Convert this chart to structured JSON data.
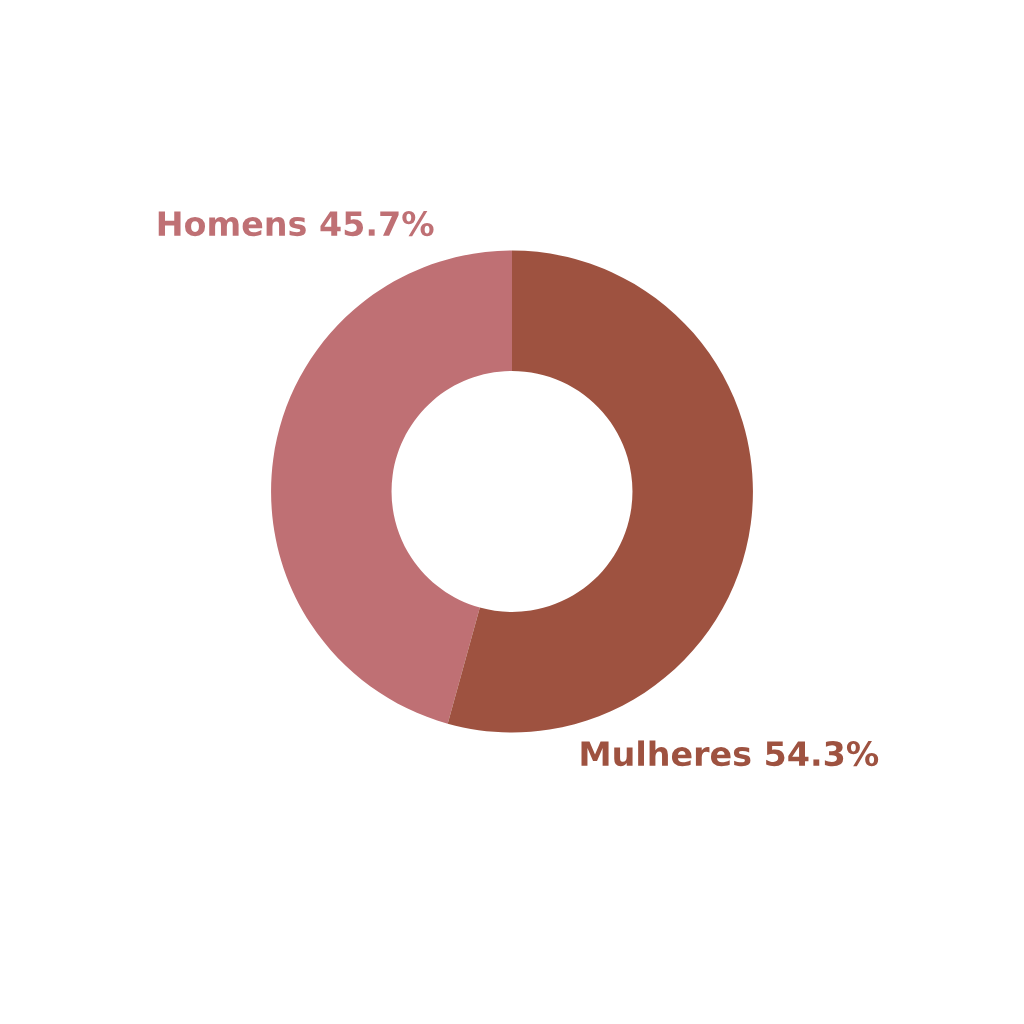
{
  "chart_data": {
    "type": "donut",
    "categories": [
      "Homens",
      "Mulheres"
    ],
    "values": [
      45.7,
      54.3
    ],
    "value_labels": [
      "45.7%",
      "54.3%"
    ],
    "colors": [
      "#bf7074",
      "#9e5240"
    ]
  }
}
